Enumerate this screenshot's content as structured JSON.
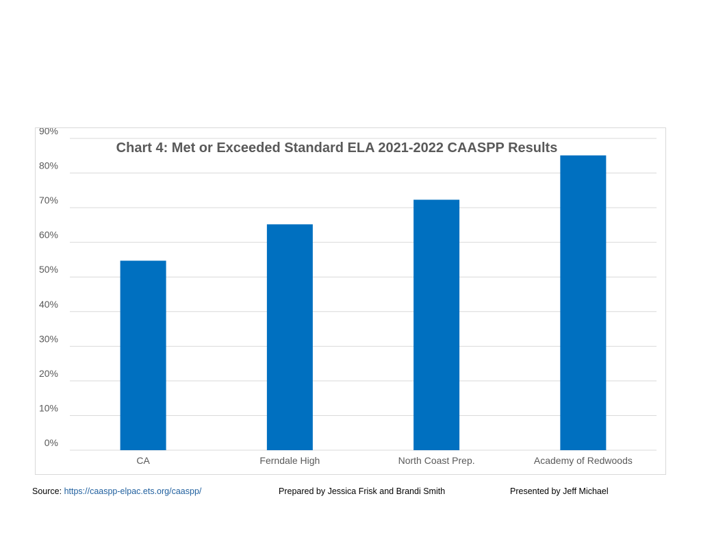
{
  "chart_data": {
    "type": "bar",
    "title": "Chart 4: Met or Exceeded Standard ELA 2021-2022 CAASPP Results",
    "categories": [
      "CA",
      "Ferndale High",
      "North Coast Prep.",
      "Academy of Redwoods"
    ],
    "values": [
      0.547,
      0.652,
      0.723,
      0.851
    ],
    "ylim": [
      0,
      0.9
    ],
    "yticks": [
      "0%",
      "10%",
      "20%",
      "30%",
      "40%",
      "50%",
      "60%",
      "70%",
      "80%",
      "90%"
    ],
    "xlabel": "",
    "ylabel": "",
    "grid": true,
    "bar_color": "#0070c0",
    "grid_color": "#d9d9d9",
    "text_color": "#595959"
  },
  "footer": {
    "source_label": "Source: ",
    "source_url": "https://caaspp-elpac.ets.org/caaspp/",
    "prepared_by": "Prepared by Jessica Frisk and Brandi Smith",
    "presented_by": "Presented by Jeff Michael"
  }
}
